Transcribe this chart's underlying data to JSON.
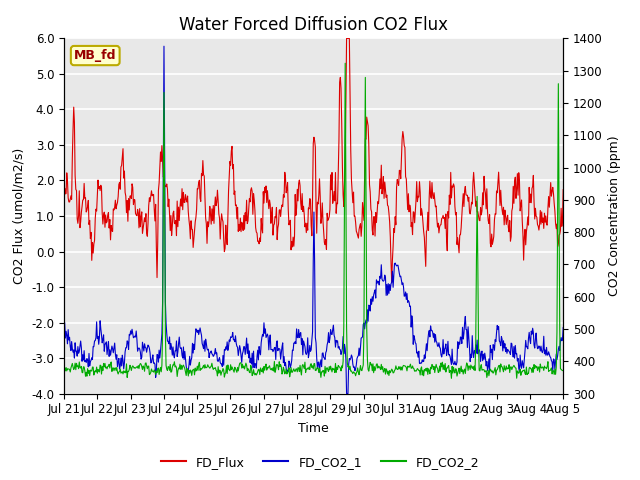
{
  "title": "Water Forced Diffusion CO2 Flux",
  "xlabel": "Time",
  "ylabel_left": "CO2 Flux (umol/m2/s)",
  "ylabel_right": "CO2 Concentration (ppm)",
  "ylim_left": [
    -4.0,
    6.0
  ],
  "ylim_right": [
    300,
    1400
  ],
  "yticks_left": [
    -4.0,
    -3.0,
    -2.0,
    -1.0,
    0.0,
    1.0,
    2.0,
    3.0,
    4.0,
    5.0,
    6.0
  ],
  "yticks_right": [
    300,
    400,
    500,
    600,
    700,
    800,
    900,
    1000,
    1100,
    1200,
    1300,
    1400
  ],
  "xtick_labels": [
    "Jul 21",
    "Jul 22",
    "Jul 23",
    "Jul 24",
    "Jul 25",
    "Jul 26",
    "Jul 27",
    "Jul 28",
    "Jul 29",
    "Jul 30",
    "Jul 31",
    "Aug 1",
    "Aug 2",
    "Aug 3",
    "Aug 4",
    "Aug 5"
  ],
  "legend_label": "MB_fd",
  "legend_box_color": "#ffffcc",
  "legend_box_edge": "#bbaa00",
  "legend_text_color": "#990000",
  "line_colors": {
    "FD_Flux": "#dd0000",
    "FD_CO2_1": "#0000cc",
    "FD_CO2_2": "#00aa00"
  },
  "line_widths": {
    "FD_Flux": 0.8,
    "FD_CO2_1": 0.8,
    "FD_CO2_2": 0.8
  },
  "background_color": "#e8e8e8",
  "fig_background": "#ffffff",
  "grid_color": "#ffffff",
  "title_fontsize": 12,
  "axis_label_fontsize": 9,
  "tick_fontsize": 8.5,
  "legend_fontsize": 9
}
